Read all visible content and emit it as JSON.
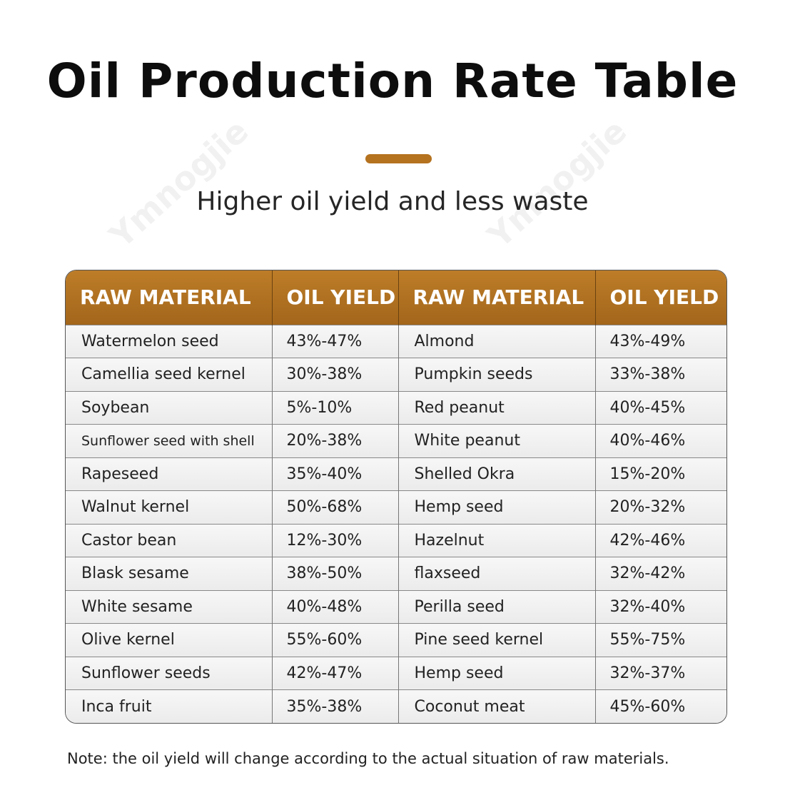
{
  "title": "Oil Production Rate Table",
  "subtitle": "Higher oil yield and less waste",
  "accent_color": "#b5721f",
  "header_color": "#b0711f",
  "watermark": "Ymnogjie",
  "table": {
    "headers": [
      "RAW MATERIAL",
      "OIL YIELD",
      "RAW MATERIAL",
      "OIL YIELD"
    ],
    "rows": [
      [
        "Watermelon seed",
        "43%-47%",
        "Almond",
        "43%-49%"
      ],
      [
        "Camellia seed kernel",
        "30%-38%",
        "Pumpkin seeds",
        "33%-38%"
      ],
      [
        "Soybean",
        "5%-10%",
        "Red peanut",
        "40%-45%"
      ],
      [
        "Sunflower seed with shell",
        "20%-38%",
        "White peanut",
        "40%-46%"
      ],
      [
        "Rapeseed",
        "35%-40%",
        "Shelled Okra",
        "15%-20%"
      ],
      [
        "Walnut kernel",
        "50%-68%",
        "Hemp seed",
        "20%-32%"
      ],
      [
        "Castor bean",
        "12%-30%",
        "Hazelnut",
        "42%-46%"
      ],
      [
        "Blask sesame",
        "38%-50%",
        "flaxseed",
        "32%-42%"
      ],
      [
        "White sesame",
        "40%-48%",
        "Perilla seed",
        "32%-40%"
      ],
      [
        "Olive kernel",
        "55%-60%",
        "Pine seed kernel",
        "55%-75%"
      ],
      [
        "Sunflower seeds",
        "42%-47%",
        "Hemp seed",
        "32%-37%"
      ],
      [
        "Inca fruit",
        "35%-38%",
        "Coconut meat",
        "45%-60%"
      ]
    ]
  },
  "note": "Note: the oil yield will change according to the actual situation of raw materials."
}
